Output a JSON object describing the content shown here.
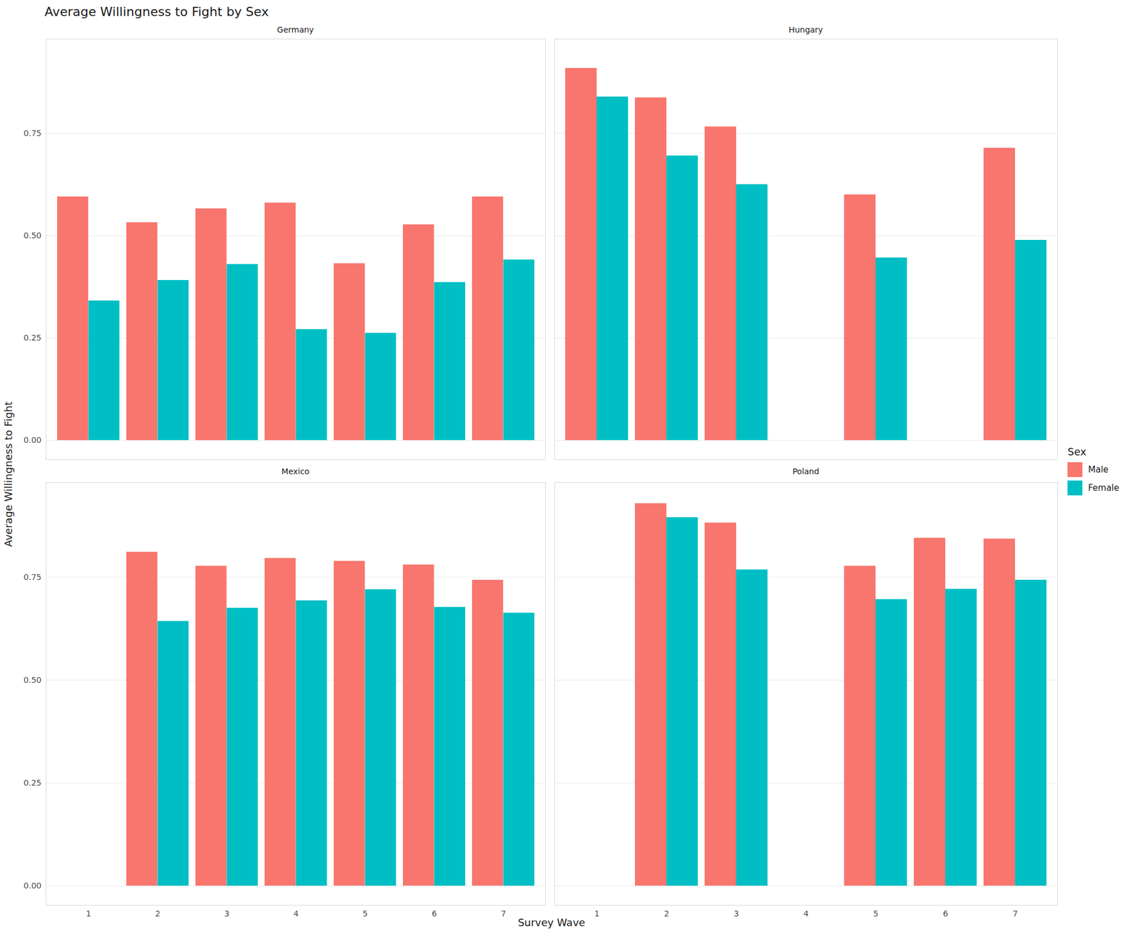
{
  "chart_data": {
    "type": "bar",
    "title": "Average Willingness to Fight by Sex",
    "x_label": "Survey Wave",
    "y_label": "Average Willingness to Fight",
    "legend_title": "Sex",
    "legend": "right",
    "grid": true,
    "categories": [
      1,
      2,
      3,
      4,
      5,
      6,
      7
    ],
    "ylim": [
      -0.047,
      0.98
    ],
    "yticks": [
      {
        "value": 0,
        "label": "0.00"
      },
      {
        "value": 0.25,
        "label": "0.25"
      },
      {
        "value": 0.5,
        "label": "0.50"
      },
      {
        "value": 0.75,
        "label": "0.75"
      }
    ],
    "facets": [
      {
        "title": "Germany",
        "series": [
          {
            "name": "Male",
            "color": "#F8766D",
            "values": [
              0.595,
              0.532,
              0.566,
              0.58,
              0.432,
              0.527,
              0.595
            ]
          },
          {
            "name": "Female",
            "color": "#00BFC4",
            "values": [
              0.341,
              0.391,
              0.43,
              0.271,
              0.262,
              0.386,
              0.441
            ]
          }
        ]
      },
      {
        "title": "Hungary",
        "series": [
          {
            "name": "Male",
            "color": "#F8766D",
            "values": [
              0.909,
              0.837,
              0.766,
              null,
              0.6,
              null,
              0.714
            ]
          },
          {
            "name": "Female",
            "color": "#00BFC4",
            "values": [
              0.839,
              0.695,
              0.625,
              null,
              0.446,
              null,
              0.489
            ]
          }
        ]
      },
      {
        "title": "Mexico",
        "series": [
          {
            "name": "Male",
            "color": "#F8766D",
            "values": [
              null,
              0.811,
              0.777,
              0.796,
              0.789,
              0.78,
              0.743
            ]
          },
          {
            "name": "Female",
            "color": "#00BFC4",
            "values": [
              null,
              0.643,
              0.675,
              0.693,
              0.72,
              0.677,
              0.663
            ]
          }
        ]
      },
      {
        "title": "Poland",
        "series": [
          {
            "name": "Male",
            "color": "#F8766D",
            "values": [
              null,
              0.929,
              0.882,
              null,
              0.777,
              0.845,
              0.843
            ]
          },
          {
            "name": "Female",
            "color": "#00BFC4",
            "values": [
              null,
              0.895,
              0.768,
              null,
              0.696,
              0.721,
              0.743
            ]
          }
        ]
      }
    ]
  }
}
